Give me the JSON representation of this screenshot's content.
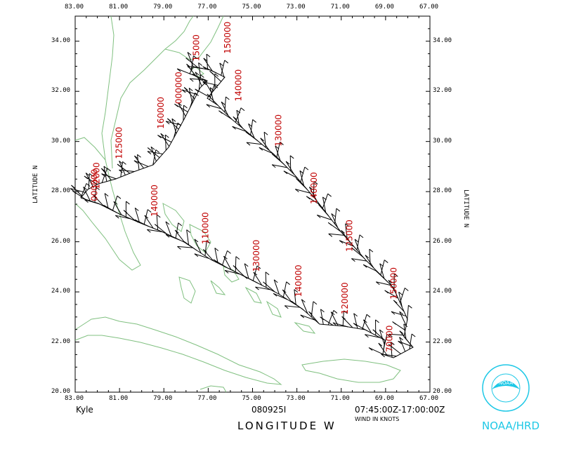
{
  "map": {
    "storm_name": "Kyle",
    "flight_id": "080925I",
    "time_range": "07:45:00Z-17:00:00Z",
    "wind_units_label": "WIND IN KNOTS",
    "x_axis_label": "LONGITUDE  W",
    "y_axis_label": "LATITUDE  N",
    "agency": "NOAA/HRD",
    "logo_text": "NOAA",
    "lon_ticks": [
      "83.00",
      "81.00",
      "79.00",
      "77.00",
      "75.00",
      "73.00",
      "71.00",
      "69.00",
      "67.00"
    ],
    "lat_ticks": [
      "20.00",
      "22.00",
      "24.00",
      "26.00",
      "28.00",
      "30.00",
      "32.00",
      "34.00"
    ],
    "altitude_labels": [
      {
        "text": "000000",
        "lon": 82.0,
        "lat": 27.62
      },
      {
        "text": "12000",
        "lon": 81.9,
        "lat": 28.1
      },
      {
        "text": "125000",
        "lon": 80.9,
        "lat": 29.3
      },
      {
        "text": "160000",
        "lon": 79.0,
        "lat": 30.5
      },
      {
        "text": "000000",
        "lon": 78.2,
        "lat": 31.5
      },
      {
        "text": "15000",
        "lon": 77.4,
        "lat": 33.2
      },
      {
        "text": "150000",
        "lon": 76.0,
        "lat": 33.5
      },
      {
        "text": "140000",
        "lon": 75.5,
        "lat": 31.6
      },
      {
        "text": "130000",
        "lon": 73.7,
        "lat": 29.8
      },
      {
        "text": "140000",
        "lon": 72.1,
        "lat": 27.5
      },
      {
        "text": "125000",
        "lon": 70.5,
        "lat": 25.6
      },
      {
        "text": "150000",
        "lon": 68.5,
        "lat": 23.7
      },
      {
        "text": "70000",
        "lon": 68.7,
        "lat": 21.6
      },
      {
        "text": "120000",
        "lon": 70.7,
        "lat": 23.1
      },
      {
        "text": "140000",
        "lon": 72.8,
        "lat": 23.8
      },
      {
        "text": "130000",
        "lon": 74.7,
        "lat": 24.8
      },
      {
        "text": "110000",
        "lon": 77.0,
        "lat": 25.9
      },
      {
        "text": "140000",
        "lon": 79.3,
        "lat": 27.0
      }
    ],
    "colors": {
      "coastline": "#80c080",
      "altitude_label": "#c00000",
      "track": "#000000",
      "logo": "#1ec8e6"
    }
  }
}
